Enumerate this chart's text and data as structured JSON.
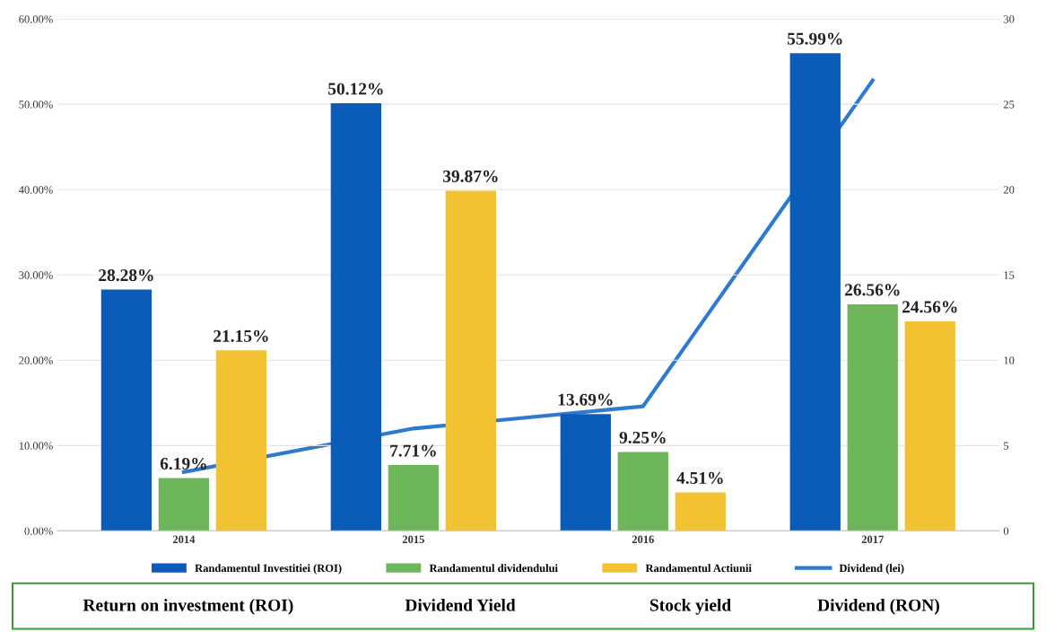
{
  "chart_data": {
    "type": "bar",
    "categories": [
      "2014",
      "2015",
      "2016",
      "2017"
    ],
    "series": [
      {
        "name": "Randamentul Investitiei (ROI)",
        "color": "#0b5cb8",
        "values": [
          28.28,
          50.12,
          13.69,
          55.99
        ],
        "value_labels": [
          "28.28%",
          "50.12%",
          "13.69%",
          "55.99%"
        ]
      },
      {
        "name": "Randamentul dividendului",
        "color": "#6db65a",
        "values": [
          6.19,
          7.71,
          9.25,
          26.56
        ],
        "value_labels": [
          "6.19%",
          "7.71%",
          "9.25%",
          "26.56%"
        ]
      },
      {
        "name": "Randamentul Actiunii",
        "color": "#f3c232",
        "values": [
          21.15,
          39.87,
          4.51,
          24.56
        ],
        "value_labels": [
          "21.15%",
          "39.87%",
          "4.51%",
          "24.56%"
        ]
      },
      {
        "name": "Dividend (lei)",
        "color": "#2e7ad1",
        "type": "line",
        "axis": "y2",
        "values": [
          3.45,
          6.0,
          7.3,
          26.4
        ]
      }
    ],
    "ylim": [
      0,
      60
    ],
    "yticks": [
      {
        "value": 0,
        "label": "0.00%"
      },
      {
        "value": 10,
        "label": "10.00%"
      },
      {
        "value": 20,
        "label": "20.00%"
      },
      {
        "value": 30,
        "label": "30.00%"
      },
      {
        "value": 40,
        "label": "40.00%"
      },
      {
        "value": 50,
        "label": "50.00%"
      },
      {
        "value": 60,
        "label": "60.00%"
      }
    ],
    "y2lim": [
      0,
      30
    ],
    "y2ticks": [
      0,
      5,
      10,
      15,
      20,
      25,
      30
    ],
    "grid": "y",
    "legend": "bottom",
    "annotations": [
      "Return on investment (ROI)",
      "Dividend Yield",
      "Stock yield",
      "Dividend (RON)"
    ]
  }
}
